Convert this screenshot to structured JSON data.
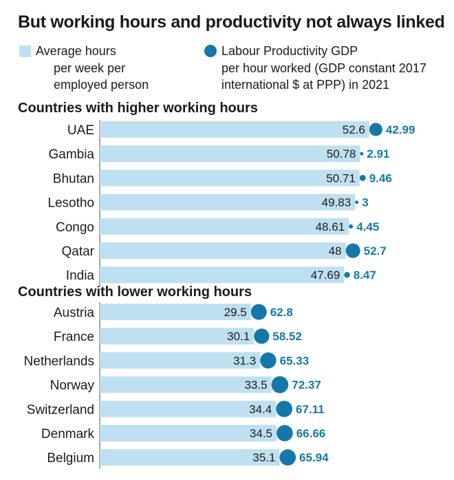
{
  "title": "But working hours and productivity not always linked",
  "colors": {
    "bar": "#bfe0f1",
    "dot": "#1578a8",
    "dot_label": "#1578a8",
    "text": "#1a1a1a",
    "axis": "#444444"
  },
  "legend": {
    "hours_lines": [
      "Average hours",
      "per week per",
      "employed person"
    ],
    "productivity_lines": [
      "Labour Productivity GDP",
      "per hour worked (GDP constant 2017",
      "international $ at PPP) in 2021"
    ]
  },
  "sections": {
    "higher": "Countries with higher working hours",
    "lower": "Countries with lower working hours"
  },
  "chart_data": {
    "type": "bar",
    "orientation": "horizontal",
    "title": "But working hours and productivity not always linked",
    "series": [
      {
        "name": "Average hours per week per employed person",
        "encoding": "bar length"
      },
      {
        "name": "Labour Productivity GDP per hour worked (GDP constant 2017 international $ at PPP) in 2021",
        "encoding": "dot size"
      }
    ],
    "groups": [
      {
        "name": "Countries with higher working hours",
        "items": [
          {
            "country": "UAE",
            "hours": 52.6,
            "hours_label": "52.6",
            "productivity": 42.99,
            "productivity_label": "42.99"
          },
          {
            "country": "Gambia",
            "hours": 50.78,
            "hours_label": "50.78",
            "productivity": 2.91,
            "productivity_label": "2.91"
          },
          {
            "country": "Bhutan",
            "hours": 50.71,
            "hours_label": "50.71",
            "productivity": 9.46,
            "productivity_label": "9.46"
          },
          {
            "country": "Lesotho",
            "hours": 49.83,
            "hours_label": "49.83",
            "productivity": 3,
            "productivity_label": "3"
          },
          {
            "country": "Congo",
            "hours": 48.61,
            "hours_label": "48.61",
            "productivity": 4.45,
            "productivity_label": "4.45"
          },
          {
            "country": "Qatar",
            "hours": 48,
            "hours_label": "48",
            "productivity": 52.7,
            "productivity_label": "52.7"
          },
          {
            "country": "India",
            "hours": 47.69,
            "hours_label": "47.69",
            "productivity": 8.47,
            "productivity_label": "8.47"
          }
        ]
      },
      {
        "name": "Countries with lower working hours",
        "items": [
          {
            "country": "Austria",
            "hours": 29.5,
            "hours_label": "29.5",
            "productivity": 62.8,
            "productivity_label": "62.8"
          },
          {
            "country": "France",
            "hours": 30.1,
            "hours_label": "30.1",
            "productivity": 58.52,
            "productivity_label": "58.52"
          },
          {
            "country": "Netherlands",
            "hours": 31.3,
            "hours_label": "31.3",
            "productivity": 65.33,
            "productivity_label": "65.33"
          },
          {
            "country": "Norway",
            "hours": 33.5,
            "hours_label": "33.5",
            "productivity": 72.37,
            "productivity_label": "72.37"
          },
          {
            "country": "Switzerland",
            "hours": 34.4,
            "hours_label": "34.4",
            "productivity": 67.11,
            "productivity_label": "67.11"
          },
          {
            "country": "Denmark",
            "hours": 34.5,
            "hours_label": "34.5",
            "productivity": 66.66,
            "productivity_label": "66.66"
          },
          {
            "country": "Belgium",
            "hours": 35.1,
            "hours_label": "35.1",
            "productivity": 65.94,
            "productivity_label": "65.94"
          }
        ]
      }
    ]
  }
}
